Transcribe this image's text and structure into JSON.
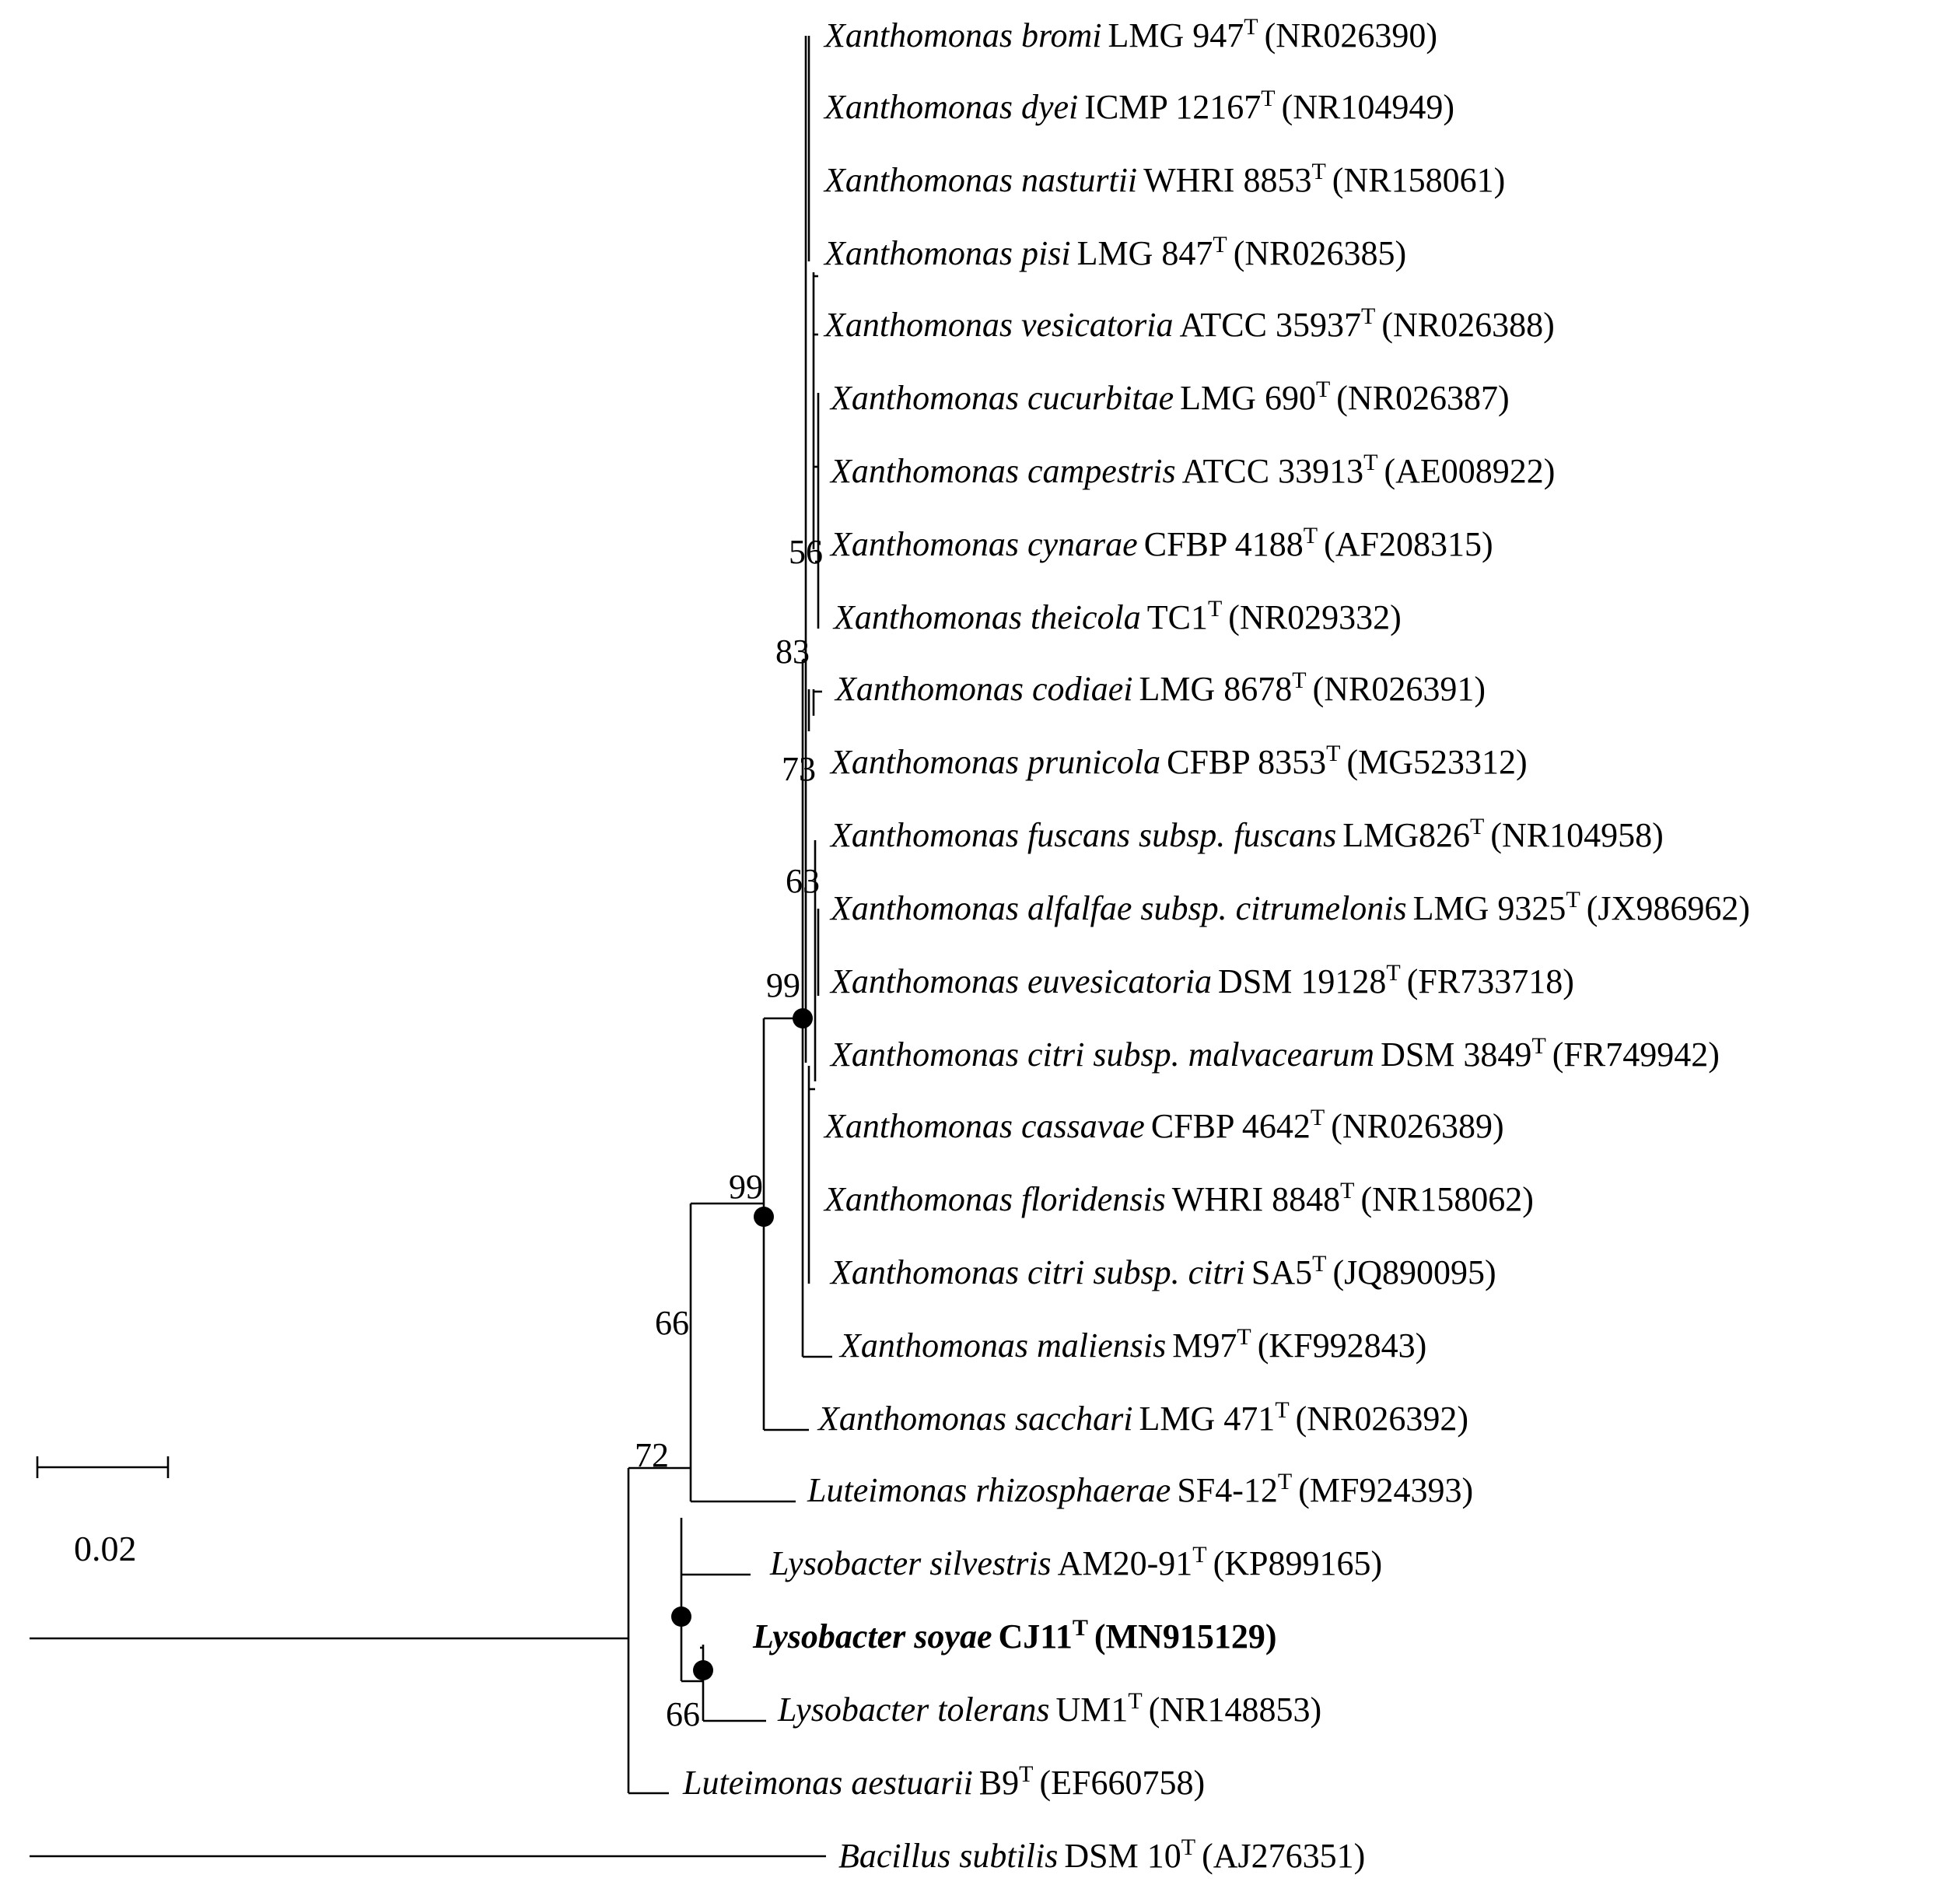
{
  "taxa": [
    {
      "species": "Xanthomonas bromi",
      "strain": "LMG 947",
      "type_mark": "T",
      "accession": "(NR026390)"
    },
    {
      "species": "Xanthomonas dyei",
      "strain": "ICMP 12167",
      "type_mark": "T",
      "accession": "(NR104949)"
    },
    {
      "species": "Xanthomonas nasturtii",
      "strain": "WHRI 8853",
      "type_mark": "T",
      "accession": "(NR158061)"
    },
    {
      "species": "Xanthomonas pisi",
      "strain": "LMG 847",
      "type_mark": "T",
      "accession": "(NR026385)"
    },
    {
      "species": "Xanthomonas vesicatoria",
      "strain": "ATCC 35937",
      "type_mark": "T",
      "accession": "(NR026388)"
    },
    {
      "species": "Xanthomonas cucurbitae",
      "strain": "LMG 690",
      "type_mark": "T",
      "accession": "(NR026387)"
    },
    {
      "species": "Xanthomonas campestris",
      "strain": "ATCC 33913",
      "type_mark": "T",
      "accession": "(AE008922)"
    },
    {
      "species": "Xanthomonas cynarae",
      "strain": "CFBP 4188",
      "type_mark": "T",
      "accession": "(AF208315)"
    },
    {
      "species": "Xanthomonas theicola",
      "strain": "TC1",
      "type_mark": "T",
      "accession": "(NR029332)"
    },
    {
      "species": "Xanthomonas codiaei",
      "strain": "LMG 8678",
      "type_mark": "T",
      "accession": "(NR026391)"
    },
    {
      "species": "Xanthomonas prunicola",
      "strain": "CFBP 8353",
      "type_mark": "T",
      "accession": "(MG523312)"
    },
    {
      "species": "Xanthomonas fuscans subsp. fuscans",
      "strain": "LMG826",
      "type_mark": "T",
      "accession": "(NR104958)"
    },
    {
      "species": "Xanthomonas alfalfae subsp. citrumelonis",
      "strain": "LMG 9325",
      "type_mark": "T",
      "accession": "(JX986962)"
    },
    {
      "species": "Xanthomonas euvesicatoria",
      "strain": "DSM 19128",
      "type_mark": "T",
      "accession": "(FR733718)"
    },
    {
      "species": "Xanthomonas citri subsp. malvacearum",
      "strain": "DSM 3849",
      "type_mark": "T",
      "accession": "(FR749942)"
    },
    {
      "species": "Xanthomonas cassavae",
      "strain": "CFBP 4642",
      "type_mark": "T",
      "accession": "(NR026389)"
    },
    {
      "species": "Xanthomonas floridensis",
      "strain": "WHRI 8848",
      "type_mark": "T",
      "accession": "(NR158062)"
    },
    {
      "species": "Xanthomonas citri subsp. citri",
      "strain": "SA5",
      "type_mark": "T",
      "accession": "(JQ890095)"
    },
    {
      "species": "Xanthomonas maliensis",
      "strain": "M97",
      "type_mark": "T",
      "accession": "(KF992843)"
    },
    {
      "species": "Xanthomonas sacchari",
      "strain": "LMG 471",
      "type_mark": "T",
      "accession": "(NR026392)"
    },
    {
      "species": "Luteimonas rhizosphaerae",
      "strain": "SF4-12",
      "type_mark": "T",
      "accession": "(MF924393)"
    },
    {
      "species": "Lysobacter silvestris",
      "strain": "AM20-91",
      "type_mark": "T",
      "accession": "(KP899165)"
    },
    {
      "species": "Lysobacter soyae",
      "strain": "CJ11",
      "type_mark": "T",
      "accession": "(MN915129)",
      "bold": true
    },
    {
      "species": "Lysobacter tolerans",
      "strain": "UM1",
      "type_mark": "T",
      "accession": "(NR148853)"
    },
    {
      "species": "Luteimonas aestuarii",
      "strain": "B9",
      "type_mark": "T",
      "accession": "(EF660758)"
    },
    {
      "species": "Bacillus subtilis",
      "strain": "DSM 10",
      "type_mark": "T",
      "accession": "(AJ276351)"
    }
  ],
  "bootstrap": [
    {
      "value": "56",
      "node": "theicola-cynarae"
    },
    {
      "value": "83",
      "node": "xanthomonas-upper"
    },
    {
      "value": "73",
      "node": "codiaei-prunicola"
    },
    {
      "value": "63",
      "node": "fuscans-group"
    },
    {
      "value": "99",
      "node": "xanthomonas-core"
    },
    {
      "value": "99",
      "node": "xanthomonas-all"
    },
    {
      "value": "66",
      "node": "xanthomonas-luteimonas"
    },
    {
      "value": "72",
      "node": "ingroup"
    },
    {
      "value": "66",
      "node": "soyae-tolerans"
    }
  ],
  "scale_bar": {
    "label": "0.02"
  }
}
